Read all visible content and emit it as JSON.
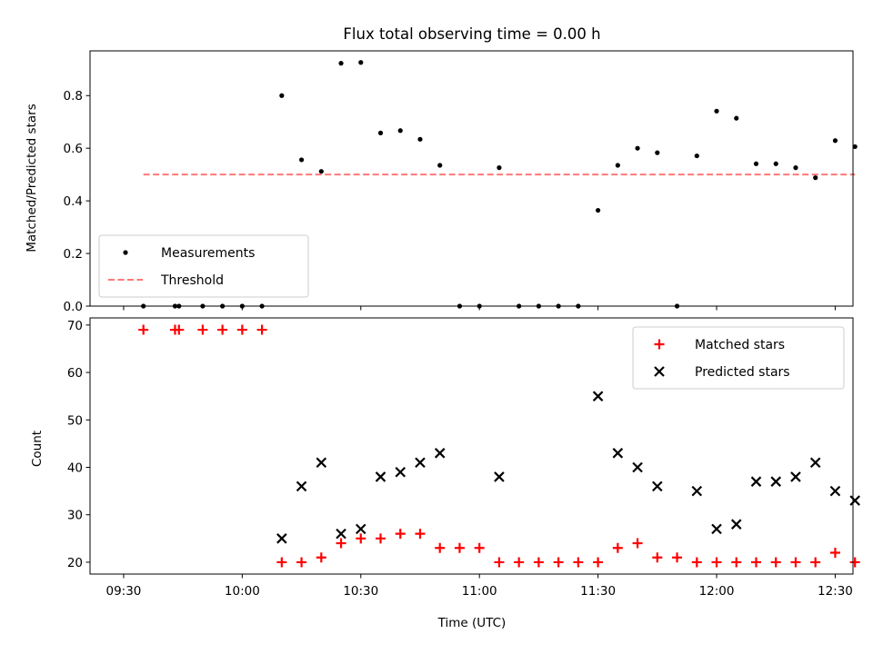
{
  "chart_data": {
    "type": "scatter",
    "title": "Flux total observing time = 0.00 h",
    "xlabel": "Time (UTC)",
    "x_ticks": [
      "09:30",
      "10:00",
      "10:30",
      "11:00",
      "11:30",
      "12:00",
      "12:30"
    ],
    "x_range_minutes": [
      561.5,
      754.5
    ],
    "panels": [
      {
        "id": "ratio",
        "ylabel": "Matched/Predicted stars",
        "ylim": [
          0,
          0.97
        ],
        "y_ticks": [
          0.0,
          0.2,
          0.4,
          0.6,
          0.8
        ],
        "y_tick_labels": [
          "0.0",
          "0.2",
          "0.4",
          "0.6",
          "0.8"
        ],
        "legend_position": "lower-left",
        "series": [
          {
            "name": "Measurements",
            "marker": "dot",
            "color": "#000000",
            "x": [
              "09:35",
              "09:43",
              "09:44",
              "09:50",
              "09:55",
              "10:00",
              "10:05",
              "10:10",
              "10:15",
              "10:20",
              "10:25",
              "10:30",
              "10:35",
              "10:40",
              "10:45",
              "10:50",
              "10:55",
              "11:00",
              "11:05",
              "11:10",
              "11:15",
              "11:20",
              "11:25",
              "11:30",
              "11:35",
              "11:40",
              "11:45",
              "11:50",
              "11:55",
              "12:00",
              "12:05",
              "12:10",
              "12:15",
              "12:20",
              "12:25",
              "12:30",
              "12:35"
            ],
            "y": [
              0,
              0,
              0,
              0,
              0,
              0,
              0,
              0.8,
              0.556,
              0.512,
              0.923,
              0.926,
              0.658,
              0.667,
              0.634,
              0.535,
              0,
              0,
              0.526,
              0,
              0,
              0,
              0,
              0.364,
              0.535,
              0.6,
              0.583,
              0,
              0.571,
              0.741,
              0.714,
              0.541,
              0.541,
              0.526,
              0.488,
              0.629,
              0.606
            ]
          },
          {
            "name": "Threshold",
            "line": "dashed",
            "color": "#ff7777",
            "x": [
              "09:35",
              "12:35"
            ],
            "y": [
              0.5,
              0.5
            ]
          }
        ]
      },
      {
        "id": "counts",
        "ylabel": "Count",
        "ylim": [
          17.5,
          71.5
        ],
        "y_ticks": [
          20,
          30,
          40,
          50,
          60,
          70
        ],
        "y_tick_labels": [
          "20",
          "30",
          "40",
          "50",
          "60",
          "70"
        ],
        "legend_position": "upper-right",
        "series": [
          {
            "name": "Matched stars",
            "marker": "plus",
            "color": "#ff0000",
            "x": [
              "09:35",
              "09:43",
              "09:44",
              "09:50",
              "09:55",
              "10:00",
              "10:05",
              "10:10",
              "10:15",
              "10:20",
              "10:25",
              "10:30",
              "10:35",
              "10:40",
              "10:45",
              "10:50",
              "10:55",
              "11:00",
              "11:05",
              "11:10",
              "11:15",
              "11:20",
              "11:25",
              "11:30",
              "11:35",
              "11:40",
              "11:45",
              "11:50",
              "11:55",
              "12:00",
              "12:05",
              "12:10",
              "12:15",
              "12:20",
              "12:25",
              "12:30",
              "12:35"
            ],
            "y": [
              69,
              69,
              69,
              69,
              69,
              69,
              69,
              20,
              20,
              21,
              24,
              25,
              25,
              26,
              26,
              23,
              23,
              23,
              20,
              20,
              20,
              20,
              20,
              20,
              23,
              24,
              21,
              21,
              20,
              20,
              20,
              20,
              20,
              20,
              20,
              22,
              20
            ]
          },
          {
            "name": "Predicted stars",
            "marker": "x",
            "color": "#000000",
            "x": [
              "10:10",
              "10:15",
              "10:20",
              "10:25",
              "10:30",
              "10:35",
              "10:40",
              "10:45",
              "10:50",
              "11:05",
              "11:30",
              "11:35",
              "11:40",
              "11:45",
              "11:55",
              "12:00",
              "12:05",
              "12:10",
              "12:15",
              "12:20",
              "12:25",
              "12:30",
              "12:35"
            ],
            "y": [
              25,
              36,
              41,
              26,
              27,
              38,
              39,
              41,
              43,
              38,
              55,
              43,
              40,
              36,
              35,
              27,
              28,
              37,
              37,
              38,
              41,
              35,
              33
            ]
          }
        ]
      }
    ]
  }
}
